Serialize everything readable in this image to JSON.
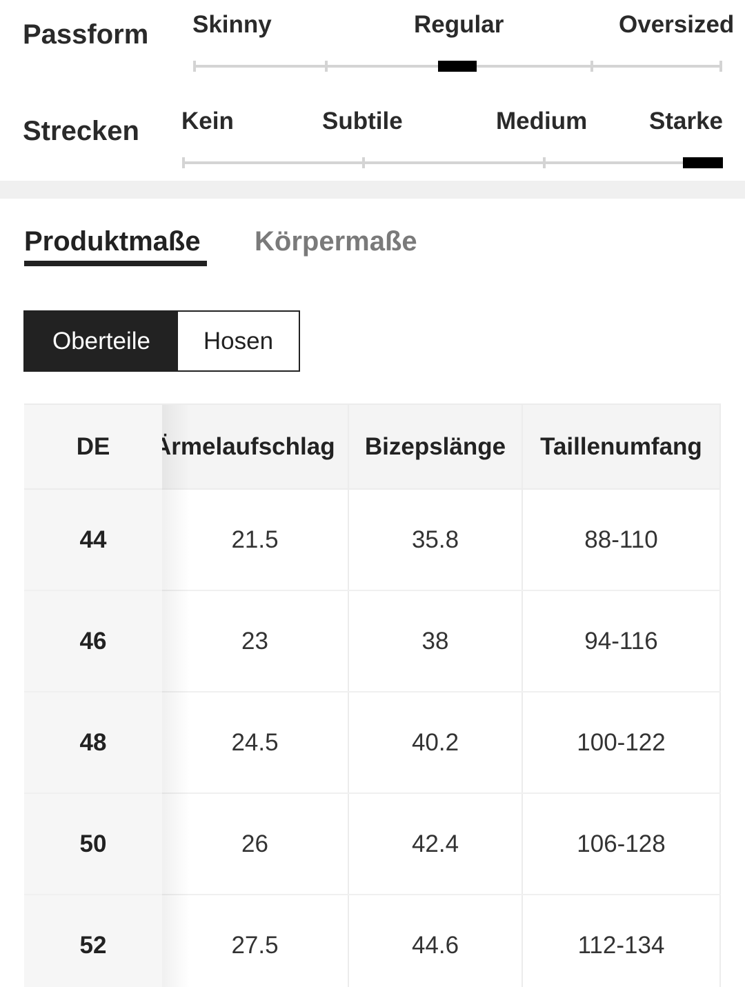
{
  "fit_scales": [
    {
      "label": "Passform",
      "options": [
        "Skinny",
        "Regular",
        "Oversized"
      ],
      "selected": "Regular",
      "selected_position_fraction": 0.5
    },
    {
      "label": "Strecken",
      "options": [
        "Kein",
        "Subtile",
        "Medium",
        "Starke"
      ],
      "selected": "Starke",
      "selected_position_fraction": 1.0
    }
  ],
  "tabs": {
    "active": "Produktmaße",
    "inactive": "Körpermaße"
  },
  "category_toggle": {
    "selected": "Oberteile",
    "other": "Hosen"
  },
  "size_table": {
    "headers": [
      "DE",
      "Ärmelaufschlag",
      "Bizepslänge",
      "Taillenumfang"
    ],
    "rows": [
      [
        "44",
        "21.5",
        "35.8",
        "88-110"
      ],
      [
        "46",
        "23",
        "38",
        "94-116"
      ],
      [
        "48",
        "24.5",
        "40.2",
        "100-122"
      ],
      [
        "50",
        "26",
        "42.4",
        "106-128"
      ],
      [
        "52",
        "27.5",
        "44.6",
        "112-134"
      ]
    ]
  }
}
